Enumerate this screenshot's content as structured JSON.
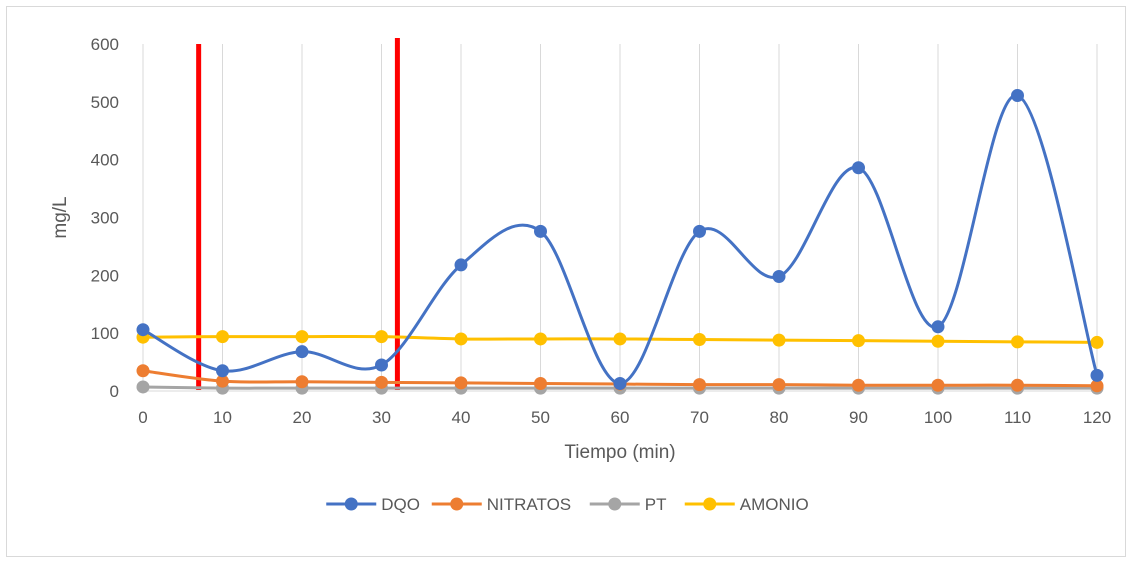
{
  "chart_data": {
    "type": "line",
    "title": "",
    "xlabel": "Tiempo (min)",
    "ylabel": "mg/L",
    "x": [
      0,
      10,
      20,
      30,
      40,
      50,
      60,
      70,
      80,
      90,
      100,
      110,
      120
    ],
    "xticks": [
      "0",
      "10",
      "20",
      "30",
      "40",
      "50",
      "60",
      "70",
      "80",
      "90",
      "100",
      "110",
      "120"
    ],
    "yticks": [
      "0",
      "100",
      "200",
      "300",
      "400",
      "500",
      "600"
    ],
    "xlim": [
      0,
      120
    ],
    "ylim": [
      0,
      600
    ],
    "grid": "vertical",
    "legend_position": "bottom",
    "smooth": true,
    "series": [
      {
        "name": "DQO",
        "color": "#4472c4",
        "values": [
          106,
          35,
          68,
          45,
          218,
          276,
          13,
          276,
          198,
          386,
          111,
          511,
          27
        ]
      },
      {
        "name": "NITRATOS",
        "color": "#ed7d31",
        "values": [
          35,
          17,
          16,
          15,
          14,
          13,
          12,
          11,
          11,
          10,
          10,
          10,
          9
        ]
      },
      {
        "name": "PT",
        "color": "#a5a5a5",
        "values": [
          7,
          5,
          5,
          5,
          5,
          5,
          5,
          5,
          5,
          5,
          5,
          5,
          5
        ]
      },
      {
        "name": "AMONIO",
        "color": "#ffc000",
        "values": [
          93,
          94,
          94,
          94,
          90,
          90,
          90,
          89,
          88,
          87,
          86,
          85,
          84
        ]
      }
    ],
    "annotations": [
      {
        "type": "vertical-line",
        "x": 7,
        "color": "#ff0000"
      },
      {
        "type": "vertical-line",
        "x": 32,
        "color": "#ff0000"
      }
    ]
  }
}
